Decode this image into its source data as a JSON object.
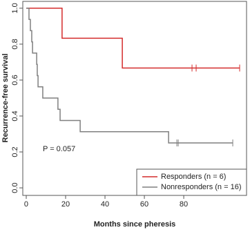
{
  "chart_data": {
    "type": "step",
    "x_label": "Months since pheresis",
    "y_label": "Recurrence-free survival",
    "annotation": "P = 0.057",
    "xlim": [
      -1.75,
      111.9
    ],
    "ylim": [
      -0.042,
      1.038
    ],
    "xticks": [
      0,
      20,
      40,
      60,
      80
    ],
    "yticks": [
      {
        "value": 0,
        "label": "0.0"
      },
      0.2,
      0.4,
      0.6,
      0.8,
      {
        "value": 1,
        "label": "1.0"
      }
    ],
    "legend": "bottom-right",
    "series": [
      {
        "name": "Responders (n = 6)",
        "color": "#d42a2a",
        "x": [
          0,
          18.2,
          48.8,
          108.4
        ],
        "values": [
          1,
          0.833,
          0.667,
          0.667
        ],
        "censored_x": [
          84.2,
          86.3,
          108.4
        ],
        "censored_values": [
          0.667,
          0.667,
          0.667
        ]
      },
      {
        "name": "Nonresponders (n = 16)",
        "color": "#7f7f7f",
        "x": [
          0,
          1.4,
          2.1,
          2.8,
          3.2,
          5.3,
          5.6,
          6.0,
          8.4,
          16.1,
          17.2,
          27.4,
          72.3,
          104.9
        ],
        "values": [
          1,
          0.9375,
          0.875,
          0.8125,
          0.75,
          0.6875,
          0.625,
          0.5625,
          0.5,
          0.4375,
          0.375,
          0.3125,
          0.25,
          0.25
        ],
        "censored_x": [
          76.5,
          77.2,
          104.9
        ],
        "censored_values": [
          0.25,
          0.25,
          0.25
        ]
      }
    ]
  }
}
